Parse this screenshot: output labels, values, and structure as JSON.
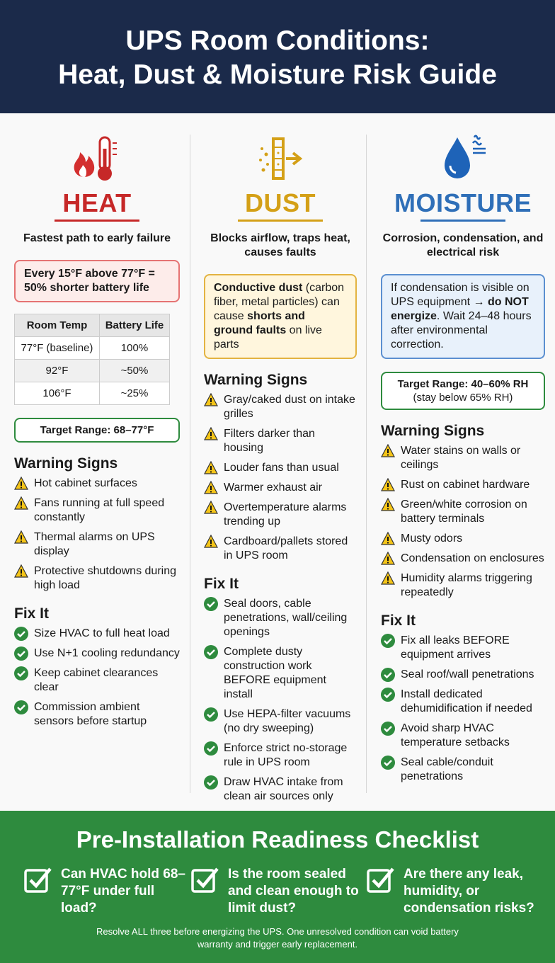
{
  "header": {
    "title_line1": "UPS Room Conditions:",
    "title_line2": "Heat, Dust & Moisture Risk Guide"
  },
  "columns": [
    {
      "title": "HEAT",
      "color": "#c62828",
      "subtitle": "Fastest path to early failure",
      "callout": [
        {
          "text": "Every 15°F above 77°F = 50% shorter battery life",
          "bold": true
        }
      ],
      "callout_border": "#e57373",
      "callout_bg": "#fdecea",
      "table": {
        "headers": [
          "Room Temp",
          "Battery Life"
        ],
        "rows": [
          [
            "77°F (baseline)",
            "100%"
          ],
          [
            "92°F",
            "~50%"
          ],
          [
            "106°F",
            "~25%"
          ]
        ]
      },
      "target": [
        {
          "text": "Target Range: 68–77°F",
          "bold": true
        }
      ],
      "warning_title": "Warning Signs",
      "warnings": [
        "Hot cabinet surfaces",
        "Fans running at full speed constantly",
        "Thermal alarms on UPS display",
        "Protective shutdowns during high load"
      ],
      "fix_title": "Fix It",
      "fixes": [
        "Size HVAC to full heat load",
        "Use N+1 cooling redundancy",
        "Keep cabinet clearances clear",
        "Commission ambient sensors before startup"
      ]
    },
    {
      "title": "DUST",
      "color": "#d4a017",
      "subtitle": "Blocks airflow, traps heat, causes faults",
      "callout": [
        {
          "text": "Conductive dust",
          "bold": true
        },
        {
          "text": " (carbon fiber, metal particles) can cause ",
          "bold": false
        },
        {
          "text": "shorts and ground faults",
          "bold": true
        },
        {
          "text": " on live parts",
          "bold": false
        }
      ],
      "callout_border": "#e3b341",
      "callout_bg": "#fff6dd",
      "warning_title": "Warning Signs",
      "warnings": [
        "Gray/caked dust on intake grilles",
        "Filters darker than housing",
        "Louder fans than usual",
        "Warmer exhaust air",
        "Overtemperature alarms trending up",
        "Cardboard/pallets stored in UPS room"
      ],
      "fix_title": "Fix It",
      "fixes": [
        "Seal doors, cable penetrations, wall/ceiling openings",
        "Complete dusty construction work BEFORE equipment install",
        "Use HEPA-filter vacuums (no dry sweeping)",
        "Enforce strict no-storage rule in UPS room",
        "Draw HVAC intake from clean air sources only"
      ]
    },
    {
      "title": "MOISTURE",
      "color": "#2f6fb8",
      "subtitle": "Corrosion, condensation, and electrical risk",
      "callout": [
        {
          "text": "If condensation is visible on UPS equipment → ",
          "bold": false
        },
        {
          "text": "do NOT energize",
          "bold": true
        },
        {
          "text": ". Wait 24–48 hours after environmental correction.",
          "bold": false
        }
      ],
      "callout_border": "#5b8fd0",
      "callout_bg": "#e8f1fb",
      "target": [
        {
          "text": "Target Range: 40–60% RH",
          "bold": true
        },
        {
          "text": "(stay below 65% RH)",
          "bold": false
        }
      ],
      "warning_title": "Warning Signs",
      "warnings": [
        "Water stains on walls or ceilings",
        "Rust on cabinet hardware",
        "Green/white corrosion on battery terminals",
        "Musty odors",
        "Condensation on enclosures",
        "Humidity alarms triggering repeatedly"
      ],
      "fix_title": "Fix It",
      "fixes": [
        "Fix all leaks BEFORE equipment arrives",
        "Seal roof/wall penetrations",
        "Install dedicated dehumidification if needed",
        "Avoid sharp HVAC temperature setbacks",
        "Seal cable/conduit penetrations"
      ]
    }
  ],
  "checklist": {
    "title": "Pre-Installation Readiness Checklist",
    "items": [
      "Can HVAC hold 68–77°F under full load?",
      "Is the room sealed and clean enough to limit dust?",
      "Are there any leak, humidity, or condensation risks?"
    ],
    "note": "Resolve ALL three before energizing the UPS. One unresolved condition can void battery warranty and trigger early replacement."
  }
}
